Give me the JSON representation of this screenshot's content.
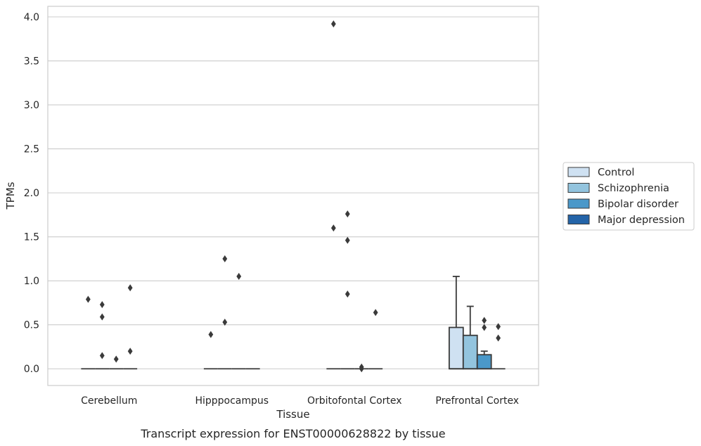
{
  "caption": "Transcript expression for ENST00000628822 by tissue",
  "colors": {
    "control": "#cfe1f2",
    "schizophrenia": "#93c4de",
    "bipolar": "#4a98c9",
    "major_depression": "#2464a8",
    "edge": "#3a3a3a",
    "grid": "#cccccc"
  },
  "chart_data": {
    "type": "box",
    "xlabel": "Tissue",
    "ylabel": "TPMs",
    "ylim": [
      -0.19,
      4.12
    ],
    "yticks": [
      0.0,
      0.5,
      1.0,
      1.5,
      2.0,
      2.5,
      3.0,
      3.5,
      4.0
    ],
    "ytick_labels": [
      "0.0",
      "0.5",
      "1.0",
      "1.5",
      "2.0",
      "2.5",
      "3.0",
      "3.5",
      "4.0"
    ],
    "categories": [
      "Cerebellum",
      "Hipppocampus",
      "Orbitofontal Cortex",
      "Prefrontal Cortex"
    ],
    "grid": "horizontal",
    "legend_position": "right",
    "series": [
      {
        "name": "Control",
        "color_key": "control"
      },
      {
        "name": "Schizophrenia",
        "color_key": "schizophrenia"
      },
      {
        "name": "Bipolar disorder",
        "color_key": "bipolar"
      },
      {
        "name": "Major depression",
        "color_key": "major_depression"
      }
    ],
    "boxes": [
      {
        "category": 0,
        "series": 0,
        "q1": 0,
        "median": 0,
        "q3": 0,
        "whislo": 0,
        "whishi": 0,
        "fliers": [
          0.79
        ]
      },
      {
        "category": 0,
        "series": 1,
        "q1": 0,
        "median": 0,
        "q3": 0,
        "whislo": 0,
        "whishi": 0,
        "fliers": [
          0.73,
          0.59,
          0.15
        ]
      },
      {
        "category": 0,
        "series": 2,
        "q1": 0,
        "median": 0,
        "q3": 0,
        "whislo": 0,
        "whishi": 0,
        "fliers": [
          0.11
        ]
      },
      {
        "category": 0,
        "series": 3,
        "q1": 0,
        "median": 0,
        "q3": 0,
        "whislo": 0,
        "whishi": 0,
        "fliers": [
          0.92,
          0.2
        ]
      },
      {
        "category": 1,
        "series": 0,
        "q1": 0,
        "median": 0,
        "q3": 0,
        "whislo": 0,
        "whishi": 0,
        "fliers": [
          0.39
        ]
      },
      {
        "category": 1,
        "series": 1,
        "q1": 0,
        "median": 0,
        "q3": 0,
        "whislo": 0,
        "whishi": 0,
        "fliers": [
          1.25,
          0.53
        ]
      },
      {
        "category": 1,
        "series": 2,
        "q1": 0,
        "median": 0,
        "q3": 0,
        "whislo": 0,
        "whishi": 0,
        "fliers": [
          1.05
        ]
      },
      {
        "category": 1,
        "series": 3,
        "q1": 0,
        "median": 0,
        "q3": 0,
        "whislo": 0,
        "whishi": 0,
        "fliers": []
      },
      {
        "category": 2,
        "series": 0,
        "q1": 0,
        "median": 0,
        "q3": 0,
        "whislo": 0,
        "whishi": 0,
        "fliers": [
          3.92,
          1.6
        ]
      },
      {
        "category": 2,
        "series": 1,
        "q1": 0,
        "median": 0,
        "q3": 0,
        "whislo": 0,
        "whishi": 0,
        "fliers": [
          1.76,
          1.46,
          0.85
        ]
      },
      {
        "category": 2,
        "series": 2,
        "q1": 0,
        "median": 0,
        "q3": 0,
        "whislo": 0,
        "whishi": 0,
        "fliers": [
          0.02,
          0.0
        ]
      },
      {
        "category": 2,
        "series": 3,
        "q1": 0,
        "median": 0,
        "q3": 0,
        "whislo": 0,
        "whishi": 0,
        "fliers": [
          0.64
        ]
      },
      {
        "category": 3,
        "series": 0,
        "q1": 0,
        "median": 0,
        "q3": 0.47,
        "whislo": 0,
        "whishi": 1.05,
        "fliers": []
      },
      {
        "category": 3,
        "series": 1,
        "q1": 0,
        "median": 0,
        "q3": 0.38,
        "whislo": 0,
        "whishi": 0.71,
        "fliers": []
      },
      {
        "category": 3,
        "series": 2,
        "q1": 0,
        "median": 0,
        "q3": 0.16,
        "whislo": 0,
        "whishi": 0.2,
        "fliers": [
          0.55,
          0.47
        ]
      },
      {
        "category": 3,
        "series": 3,
        "q1": 0,
        "median": 0,
        "q3": 0,
        "whislo": 0,
        "whishi": 0,
        "fliers": [
          0.48,
          0.35
        ]
      }
    ]
  }
}
